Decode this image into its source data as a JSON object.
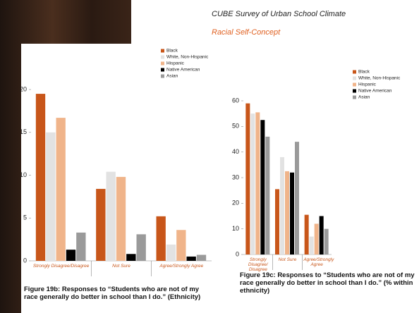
{
  "header": {
    "title": "CUBE Survey of Urban School Climate",
    "subtitle": "Racial Self-Concept"
  },
  "chart_data": [
    {
      "type": "bar",
      "caption": "Figure 19b: Responses to “Students who are not of my race generally do better in school than I do.” (Ethnicity)",
      "categories": [
        "Strongly Disagree/Disagree",
        "Not Sure",
        "Agree/Strongly Agree"
      ],
      "series": [
        {
          "name": "Black",
          "color": "#c8561a",
          "values": [
            19.5,
            8.4,
            5.2
          ]
        },
        {
          "name": "White, Non-Hispanic",
          "color": "#e2e2e2",
          "values": [
            15,
            10.4,
            1.9
          ]
        },
        {
          "name": "Hispanic",
          "color": "#f0b48a",
          "values": [
            16.7,
            9.8,
            3.6
          ]
        },
        {
          "name": "Native American",
          "color": "#000000",
          "values": [
            1.3,
            0.8,
            0.5
          ]
        },
        {
          "name": "Asian",
          "color": "#9a9a9a",
          "values": [
            3.3,
            3.1,
            0.7
          ]
        }
      ],
      "ylim": [
        0,
        20
      ],
      "yticks": [
        0,
        5,
        10,
        15,
        20
      ],
      "legend": "top-right"
    },
    {
      "type": "bar",
      "caption": "Figure 19c: Responses to “Students who are not of my race generally do better in school than I do.” (% within ethnicity)",
      "categories": [
        "Strongly Disagree/ Disagree",
        "Not Sure",
        "Agree/Strongly Agree"
      ],
      "series": [
        {
          "name": "Black",
          "color": "#c8561a",
          "values": [
            59,
            25.5,
            15.5
          ]
        },
        {
          "name": "White, Non-Hispanic",
          "color": "#e2e2e2",
          "values": [
            55,
            38,
            7
          ]
        },
        {
          "name": "Hispanic",
          "color": "#f0b48a",
          "values": [
            55.5,
            32.5,
            12
          ]
        },
        {
          "name": "Native American",
          "color": "#000000",
          "values": [
            52.5,
            32,
            15
          ]
        },
        {
          "name": "Asian",
          "color": "#9a9a9a",
          "values": [
            46,
            44,
            10
          ]
        }
      ],
      "ylim": [
        0,
        60
      ],
      "yticks": [
        0,
        10,
        20,
        30,
        40,
        50,
        60
      ],
      "legend": "top-right"
    }
  ]
}
